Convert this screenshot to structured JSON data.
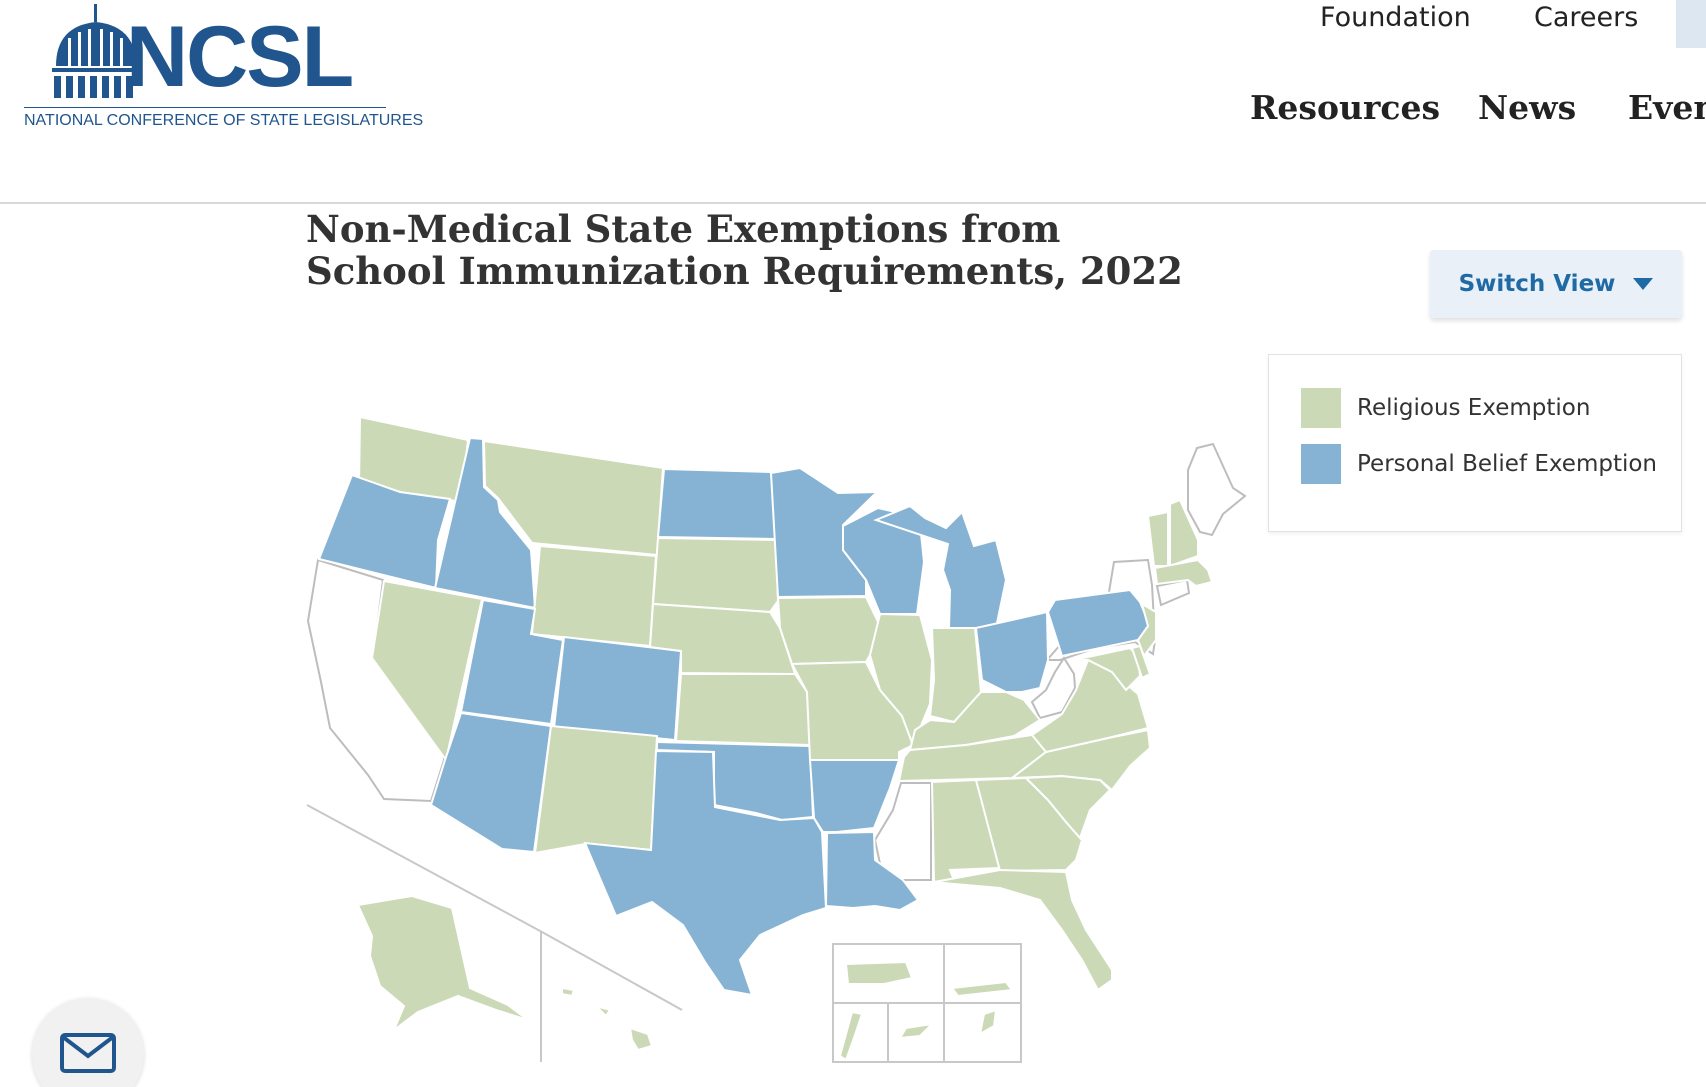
{
  "logo": {
    "wordmark": "NCSL",
    "subtitle": "NATIONAL CONFERENCE OF STATE LEGISLATURES"
  },
  "utility_nav": [
    {
      "label": "Foundation"
    },
    {
      "label": "Careers"
    }
  ],
  "main_nav": [
    {
      "label": "Resources"
    },
    {
      "label": "News"
    },
    {
      "label": "Even"
    }
  ],
  "page": {
    "title": "Non-Medical State Exemptions from School Immunization Requirements, 2022"
  },
  "switch_view": {
    "label": "Switch View",
    "icon": "caret-down-icon"
  },
  "legend": {
    "items": [
      {
        "label": "Religious Exemption",
        "color": "#cbd9b7"
      },
      {
        "label": "Personal Belief Exemption",
        "color": "#86b3d3"
      }
    ]
  },
  "map": {
    "colors": {
      "religious": "#cbd9b7",
      "personal_belief": "#86b3d3",
      "none": "#ffffff",
      "border": "#bdbdbd"
    },
    "states": {
      "personal_belief": [
        "OR",
        "ID",
        "UT",
        "CO",
        "AZ",
        "ND",
        "MN",
        "WI",
        "MI",
        "OH",
        "PA",
        "TX",
        "OK",
        "AR",
        "LA"
      ],
      "religious": [
        "WA",
        "MT",
        "WY",
        "NV",
        "NM",
        "SD",
        "NE",
        "KS",
        "IA",
        "MO",
        "IL",
        "IN",
        "KY",
        "TN",
        "AL",
        "GA",
        "FL",
        "SC",
        "NC",
        "VA",
        "MD",
        "DE",
        "NJ",
        "VT",
        "NH",
        "MA",
        "AK",
        "HI"
      ],
      "none": [
        "CA",
        "NY",
        "ME",
        "WV",
        "MS",
        "CT"
      ]
    },
    "territories": {
      "religious": [
        "Puerto Rico",
        "U.S. Virgin Islands",
        "Guam",
        "Northern Mariana Islands",
        "American Samoa"
      ]
    }
  },
  "contact": {
    "icon": "mail-icon"
  }
}
